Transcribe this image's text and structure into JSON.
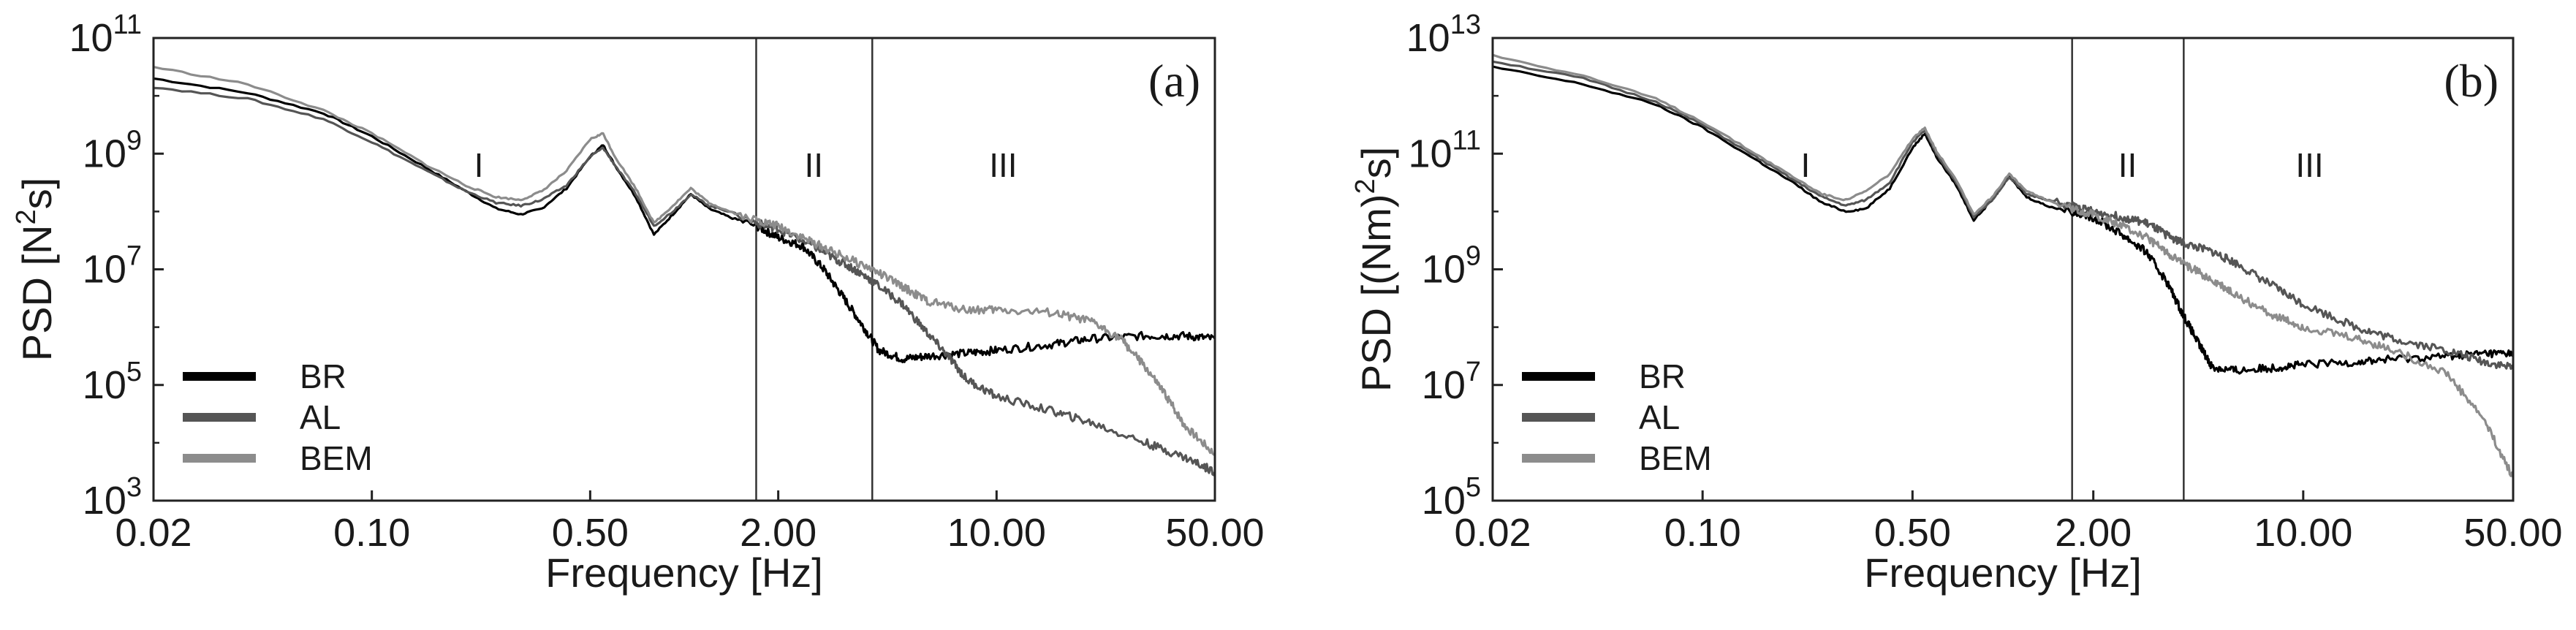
{
  "chart_data": [
    {
      "type": "line",
      "panel_label": "(a)",
      "xlabel": "Frequency [Hz]",
      "ylabel_main": "PSD [N",
      "ylabel_sup": "2",
      "ylabel_end": "s]",
      "xscale": "log",
      "yscale": "log",
      "xlim": [
        0.02,
        50
      ],
      "ylim_exp": [
        3,
        11
      ],
      "xticks": [
        0.02,
        0.1,
        0.5,
        2,
        10,
        50
      ],
      "xtick_labels": [
        "0.02",
        "0.10",
        "0.50",
        "2.00",
        "10.00",
        "50.00"
      ],
      "ytick_exponents": [
        3,
        5,
        7,
        9,
        11
      ],
      "ytick_base": "10",
      "ytick_labels": [
        "3",
        "5",
        "7",
        "9",
        "11"
      ],
      "region_boundaries_hz": [
        1.7,
        4.0
      ],
      "regions": [
        {
          "label": "I",
          "x": 0.22
        },
        {
          "label": "II",
          "x": 2.6
        },
        {
          "label": "III",
          "x": 10.5
        }
      ],
      "legend": {
        "position": "bottom-left",
        "entries": [
          "BR",
          "AL",
          "BEM"
        ]
      },
      "series": [
        {
          "name": "BR",
          "color": "#000000",
          "points": [
            [
              0.02,
              10.3
            ],
            [
              0.04,
              10.05
            ],
            [
              0.07,
              9.7
            ],
            [
              0.1,
              9.3
            ],
            [
              0.15,
              8.75
            ],
            [
              0.2,
              8.35
            ],
            [
              0.25,
              8.05
            ],
            [
              0.3,
              7.95
            ],
            [
              0.35,
              8.05
            ],
            [
              0.42,
              8.4
            ],
            [
              0.5,
              8.95
            ],
            [
              0.55,
              9.15
            ],
            [
              0.6,
              8.8
            ],
            [
              0.7,
              8.25
            ],
            [
              0.8,
              7.6
            ],
            [
              0.92,
              7.95
            ],
            [
              1.05,
              8.3
            ],
            [
              1.2,
              8.05
            ],
            [
              1.4,
              7.9
            ],
            [
              1.7,
              7.75
            ],
            [
              2.0,
              7.55
            ],
            [
              2.4,
              7.4
            ],
            [
              2.8,
              7.0
            ],
            [
              3.2,
              6.55
            ],
            [
              3.7,
              6.05
            ],
            [
              4.2,
              5.6
            ],
            [
              5,
              5.45
            ],
            [
              6,
              5.5
            ],
            [
              8,
              5.55
            ],
            [
              10,
              5.6
            ],
            [
              15,
              5.7
            ],
            [
              20,
              5.8
            ],
            [
              30,
              5.85
            ],
            [
              40,
              5.85
            ],
            [
              50,
              5.8
            ]
          ]
        },
        {
          "name": "AL",
          "color": "#555555",
          "points": [
            [
              0.02,
              10.15
            ],
            [
              0.04,
              9.95
            ],
            [
              0.07,
              9.6
            ],
            [
              0.1,
              9.2
            ],
            [
              0.15,
              8.7
            ],
            [
              0.2,
              8.35
            ],
            [
              0.25,
              8.15
            ],
            [
              0.3,
              8.1
            ],
            [
              0.35,
              8.2
            ],
            [
              0.42,
              8.45
            ],
            [
              0.5,
              8.95
            ],
            [
              0.55,
              9.1
            ],
            [
              0.6,
              8.8
            ],
            [
              0.7,
              8.3
            ],
            [
              0.8,
              7.75
            ],
            [
              0.92,
              8.0
            ],
            [
              1.05,
              8.3
            ],
            [
              1.2,
              8.1
            ],
            [
              1.4,
              8.0
            ],
            [
              1.7,
              7.8
            ],
            [
              2.0,
              7.7
            ],
            [
              2.5,
              7.45
            ],
            [
              3,
              7.2
            ],
            [
              3.5,
              7.0
            ],
            [
              4,
              6.8
            ],
            [
              5,
              6.4
            ],
            [
              6,
              5.9
            ],
            [
              7,
              5.5
            ],
            [
              8,
              5.1
            ],
            [
              10,
              4.8
            ],
            [
              15,
              4.55
            ],
            [
              20,
              4.35
            ],
            [
              30,
              4.0
            ],
            [
              40,
              3.75
            ],
            [
              50,
              3.5
            ]
          ]
        },
        {
          "name": "BEM",
          "color": "#8c8c8c",
          "points": [
            [
              0.02,
              10.5
            ],
            [
              0.04,
              10.2
            ],
            [
              0.07,
              9.75
            ],
            [
              0.1,
              9.35
            ],
            [
              0.15,
              8.8
            ],
            [
              0.2,
              8.45
            ],
            [
              0.25,
              8.25
            ],
            [
              0.3,
              8.2
            ],
            [
              0.35,
              8.35
            ],
            [
              0.42,
              8.7
            ],
            [
              0.5,
              9.25
            ],
            [
              0.55,
              9.35
            ],
            [
              0.6,
              8.95
            ],
            [
              0.7,
              8.4
            ],
            [
              0.8,
              7.8
            ],
            [
              0.92,
              8.1
            ],
            [
              1.05,
              8.4
            ],
            [
              1.2,
              8.15
            ],
            [
              1.4,
              8.0
            ],
            [
              1.7,
              7.85
            ],
            [
              2.0,
              7.75
            ],
            [
              2.5,
              7.5
            ],
            [
              3,
              7.3
            ],
            [
              4,
              7.0
            ],
            [
              5,
              6.7
            ],
            [
              6,
              6.45
            ],
            [
              8,
              6.3
            ],
            [
              10,
              6.3
            ],
            [
              15,
              6.25
            ],
            [
              20,
              6.1
            ],
            [
              25,
              5.8
            ],
            [
              30,
              5.3
            ],
            [
              35,
              4.8
            ],
            [
              40,
              4.3
            ],
            [
              50,
              3.8
            ]
          ]
        }
      ]
    },
    {
      "type": "line",
      "panel_label": "(b)",
      "xlabel": "Frequency [Hz]",
      "ylabel_main": "PSD [(Nm)",
      "ylabel_sup": "2",
      "ylabel_end": "s]",
      "xscale": "log",
      "yscale": "log",
      "xlim": [
        0.02,
        50
      ],
      "ylim_exp": [
        5,
        13
      ],
      "xticks": [
        0.02,
        0.1,
        0.5,
        2,
        10,
        50
      ],
      "xtick_labels": [
        "0.02",
        "0.10",
        "0.50",
        "2.00",
        "10.00",
        "50.00"
      ],
      "ytick_exponents": [
        5,
        7,
        9,
        11,
        13
      ],
      "ytick_base": "10",
      "ytick_labels": [
        "5",
        "7",
        "9",
        "11",
        "13"
      ],
      "region_boundaries_hz": [
        1.7,
        4.0
      ],
      "regions": [
        {
          "label": "I",
          "x": 0.22
        },
        {
          "label": "II",
          "x": 2.6
        },
        {
          "label": "III",
          "x": 10.5
        }
      ],
      "legend": {
        "position": "bottom-left",
        "entries": [
          "BR",
          "AL",
          "BEM"
        ]
      },
      "series": [
        {
          "name": "BR",
          "color": "#000000",
          "points": [
            [
              0.02,
              12.5
            ],
            [
              0.04,
              12.2
            ],
            [
              0.07,
              11.85
            ],
            [
              0.1,
              11.45
            ],
            [
              0.15,
              10.9
            ],
            [
              0.2,
              10.5
            ],
            [
              0.25,
              10.15
            ],
            [
              0.3,
              10.0
            ],
            [
              0.35,
              10.05
            ],
            [
              0.42,
              10.4
            ],
            [
              0.5,
              11.1
            ],
            [
              0.55,
              11.35
            ],
            [
              0.6,
              10.95
            ],
            [
              0.7,
              10.45
            ],
            [
              0.8,
              9.85
            ],
            [
              0.92,
              10.2
            ],
            [
              1.05,
              10.6
            ],
            [
              1.2,
              10.25
            ],
            [
              1.4,
              10.1
            ],
            [
              1.7,
              10.0
            ],
            [
              2.0,
              9.9
            ],
            [
              2.5,
              9.6
            ],
            [
              3,
              9.3
            ],
            [
              3.5,
              8.8
            ],
            [
              4,
              8.2
            ],
            [
              4.5,
              7.7
            ],
            [
              5,
              7.3
            ],
            [
              6,
              7.25
            ],
            [
              8,
              7.3
            ],
            [
              10,
              7.35
            ],
            [
              15,
              7.4
            ],
            [
              20,
              7.45
            ],
            [
              30,
              7.5
            ],
            [
              40,
              7.55
            ],
            [
              50,
              7.55
            ]
          ]
        },
        {
          "name": "AL",
          "color": "#555555",
          "points": [
            [
              0.02,
              12.6
            ],
            [
              0.04,
              12.3
            ],
            [
              0.07,
              11.9
            ],
            [
              0.1,
              11.5
            ],
            [
              0.15,
              10.95
            ],
            [
              0.2,
              10.55
            ],
            [
              0.25,
              10.25
            ],
            [
              0.3,
              10.1
            ],
            [
              0.35,
              10.2
            ],
            [
              0.42,
              10.5
            ],
            [
              0.5,
              11.2
            ],
            [
              0.55,
              11.4
            ],
            [
              0.6,
              11.0
            ],
            [
              0.7,
              10.5
            ],
            [
              0.8,
              9.9
            ],
            [
              0.92,
              10.2
            ],
            [
              1.05,
              10.6
            ],
            [
              1.2,
              10.3
            ],
            [
              1.4,
              10.2
            ],
            [
              1.7,
              10.1
            ],
            [
              2.0,
              10.0
            ],
            [
              2.5,
              9.9
            ],
            [
              3,
              9.8
            ],
            [
              3.5,
              9.6
            ],
            [
              4,
              9.45
            ],
            [
              5,
              9.3
            ],
            [
              6,
              9.1
            ],
            [
              8,
              8.7
            ],
            [
              10,
              8.4
            ],
            [
              15,
              8.0
            ],
            [
              20,
              7.8
            ],
            [
              30,
              7.6
            ],
            [
              40,
              7.4
            ],
            [
              50,
              7.3
            ]
          ]
        },
        {
          "name": "BEM",
          "color": "#8c8c8c",
          "points": [
            [
              0.02,
              12.7
            ],
            [
              0.04,
              12.35
            ],
            [
              0.07,
              11.95
            ],
            [
              0.1,
              11.55
            ],
            [
              0.15,
              11.0
            ],
            [
              0.2,
              10.6
            ],
            [
              0.25,
              10.3
            ],
            [
              0.3,
              10.2
            ],
            [
              0.35,
              10.35
            ],
            [
              0.42,
              10.65
            ],
            [
              0.5,
              11.25
            ],
            [
              0.55,
              11.45
            ],
            [
              0.6,
              11.05
            ],
            [
              0.7,
              10.55
            ],
            [
              0.8,
              9.95
            ],
            [
              0.92,
              10.25
            ],
            [
              1.05,
              10.65
            ],
            [
              1.2,
              10.35
            ],
            [
              1.4,
              10.2
            ],
            [
              1.7,
              10.05
            ],
            [
              2.0,
              9.95
            ],
            [
              2.5,
              9.75
            ],
            [
              3,
              9.55
            ],
            [
              3.5,
              9.3
            ],
            [
              4,
              9.1
            ],
            [
              5,
              8.8
            ],
            [
              6,
              8.55
            ],
            [
              8,
              8.2
            ],
            [
              10,
              8.0
            ],
            [
              15,
              7.8
            ],
            [
              20,
              7.6
            ],
            [
              30,
              7.2
            ],
            [
              40,
              6.4
            ],
            [
              50,
              5.4
            ]
          ]
        }
      ]
    }
  ]
}
